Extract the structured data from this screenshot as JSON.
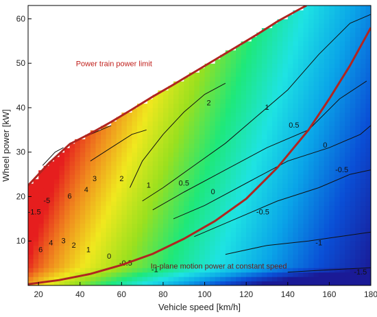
{
  "chart_data": {
    "type": "heatmap",
    "title": "",
    "xlabel": "Vehicle speed [km/h]",
    "ylabel": "Wheel power [kW]",
    "xlim": [
      15,
      180
    ],
    "ylim": [
      0,
      63
    ],
    "x_ticks": [
      20,
      40,
      60,
      80,
      100,
      120,
      140,
      160,
      180
    ],
    "y_ticks": [
      10,
      20,
      30,
      40,
      50,
      60
    ],
    "colormap": [
      "#1a1a96",
      "#0a4fd6",
      "#0aa5e8",
      "#1ee3e3",
      "#1ee87a",
      "#9be01e",
      "#f0e81e",
      "#f08a1e",
      "#e61e1e"
    ],
    "annotations": {
      "power_limit": "Power train power limit",
      "constant_speed": "In-plane motion power at constant speed"
    },
    "annotation_colors": {
      "power_limit": "#c0201c",
      "constant_speed": "#6a1a18"
    },
    "curve_color": "#b02520",
    "power_limit_curve": {
      "x": [
        15,
        25,
        35,
        45,
        55,
        65,
        75,
        85,
        95,
        105,
        115,
        125,
        135,
        145,
        149
      ],
      "y": [
        22.5,
        27.5,
        31.8,
        34.2,
        36.8,
        39.6,
        42.5,
        45.2,
        48,
        50.8,
        53.6,
        56.4,
        59.4,
        62,
        63
      ]
    },
    "constant_speed_curve": {
      "x": [
        15,
        30,
        45,
        60,
        75,
        90,
        105,
        120,
        135,
        150,
        160,
        170,
        180
      ],
      "y": [
        0.3,
        1.2,
        2.6,
        4.6,
        7.1,
        10.5,
        14.5,
        19.5,
        26.5,
        35,
        42,
        49.5,
        58
      ]
    },
    "contour_labels": [
      {
        "text": "2",
        "x": 102,
        "y": 40.5
      },
      {
        "text": "1",
        "x": 130,
        "y": 39.5
      },
      {
        "text": "0.5",
        "x": 143,
        "y": 35.5
      },
      {
        "text": "0",
        "x": 158,
        "y": 31
      },
      {
        "text": "-0.5",
        "x": 166,
        "y": 25.5
      },
      {
        "text": "6",
        "x": 35,
        "y": 19.5
      },
      {
        "text": "4",
        "x": 43,
        "y": 21
      },
      {
        "text": "3",
        "x": 47,
        "y": 23.5
      },
      {
        "text": "2",
        "x": 60,
        "y": 23.5
      },
      {
        "text": "1",
        "x": 73,
        "y": 22
      },
      {
        "text": "0.5",
        "x": 90,
        "y": 22.5
      },
      {
        "text": "0",
        "x": 104,
        "y": 20.5
      },
      {
        "text": "-0.5",
        "x": 128,
        "y": 16
      },
      {
        "text": "-1",
        "x": 155,
        "y": 9
      },
      {
        "text": "-1.5",
        "x": 175,
        "y": 2.5
      },
      {
        "text": "-5",
        "x": 24,
        "y": 18.5
      },
      {
        "text": "6",
        "x": 21,
        "y": 7.5
      },
      {
        "text": "4",
        "x": 26,
        "y": 9
      },
      {
        "text": "3",
        "x": 32,
        "y": 9.5
      },
      {
        "text": "2",
        "x": 37,
        "y": 8.5
      },
      {
        "text": "1",
        "x": 44,
        "y": 7.5
      },
      {
        "text": "0",
        "x": 54,
        "y": 6
      },
      {
        "text": "-0.5",
        "x": 62,
        "y": 4.5
      },
      {
        "text": "-1",
        "x": 76,
        "y": 3
      },
      {
        "text": "-1.5",
        "x": 18,
        "y": 16
      }
    ],
    "contours": [
      {
        "level": "2",
        "x": [
          64,
          70,
          80,
          90,
          100,
          108,
          110
        ],
        "y": [
          22,
          28,
          34,
          39,
          43,
          45,
          45.5
        ]
      },
      {
        "level": "1",
        "x": [
          70,
          80,
          95,
          110,
          125,
          140,
          155,
          170,
          180
        ],
        "y": [
          19,
          22,
          27,
          32,
          38,
          44,
          52,
          59,
          61
        ]
      },
      {
        "level": "0.5",
        "x": [
          75,
          90,
          110,
          130,
          150,
          165,
          178
        ],
        "y": [
          17,
          21,
          26,
          31,
          35,
          42,
          46
        ]
      },
      {
        "level": "0",
        "x": [
          85,
          100,
          120,
          140,
          160,
          175,
          180
        ],
        "y": [
          15,
          18,
          23,
          28,
          31,
          34,
          36
        ]
      },
      {
        "level": "-0.5",
        "x": [
          95,
          115,
          135,
          155,
          170,
          180
        ],
        "y": [
          11,
          15,
          19,
          22,
          25,
          26
        ]
      },
      {
        "level": "-1",
        "x": [
          110,
          130,
          150,
          165,
          180
        ],
        "y": [
          7,
          9,
          10,
          11,
          12
        ]
      },
      {
        "level": "-1.5",
        "x": [
          140,
          160,
          180
        ],
        "y": [
          3,
          3.5,
          4
        ]
      },
      {
        "level": "3",
        "x": [
          45,
          55,
          65,
          72
        ],
        "y": [
          28,
          31,
          34,
          35
        ]
      },
      {
        "level": "4",
        "x": [
          35,
          45,
          55
        ],
        "y": [
          32,
          34,
          36
        ]
      },
      {
        "level": "6",
        "x": [
          22,
          28,
          32
        ],
        "y": [
          27,
          30,
          31
        ]
      }
    ],
    "legend": "",
    "grid": false
  }
}
